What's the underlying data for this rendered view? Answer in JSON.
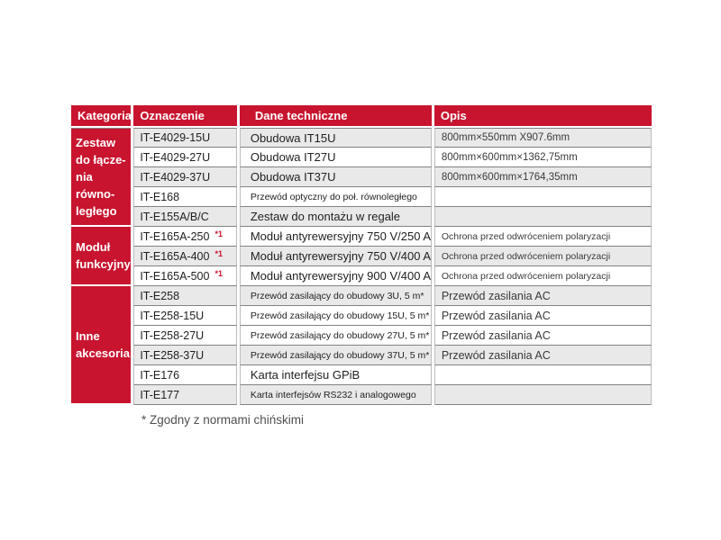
{
  "colors": {
    "accent_red": "#c8142f",
    "row_shaded": "#e9e9e9",
    "grid_line": "#828282"
  },
  "table": {
    "headers": [
      "Kategoria",
      "Oznaczenie",
      "Dane techniczne",
      "Opis"
    ],
    "categories": [
      {
        "label": "Zestaw\ndo łącze-\nnia równo-\nległego",
        "row_start": 0,
        "row_span": 5
      },
      {
        "label": "Moduł\nfunkcyjny",
        "row_start": 5,
        "row_span": 3
      },
      {
        "label": "Inne\nakcesoria",
        "row_start": 8,
        "row_span": 6
      }
    ],
    "rows": [
      {
        "code": "IT-E4029-15U",
        "note": "",
        "tech": "Obudowa IT15U",
        "opis": "800mm×550mm X907.6mm",
        "shaded": true
      },
      {
        "code": "IT-E4029-27U",
        "note": "",
        "tech": "Obudowa IT27U",
        "opis": "800mm×600mm×1362,75mm",
        "shaded": false
      },
      {
        "code": "IT-E4029-37U",
        "note": "",
        "tech": "Obudowa IT37U",
        "opis": "800mm×600mm×1764,35mm",
        "shaded": true
      },
      {
        "code": "IT-E168",
        "note": "",
        "tech": "Przewód optyczny do poł. równoległego",
        "opis": "",
        "shaded": false
      },
      {
        "code": "IT-E155A/B/C",
        "note": "",
        "tech": "Zestaw do montażu w regale",
        "opis": "",
        "shaded": true
      },
      {
        "code": "IT-E165A-250",
        "note": "*1",
        "tech": "Moduł antyrewersyjny 750 V/250 A",
        "opis": "Ochrona przed odwróceniem polaryzacji",
        "shaded": false
      },
      {
        "code": "IT-E165A-400",
        "note": "*1",
        "tech": "Moduł antyrewersyjny 750 V/400 A",
        "opis": "Ochrona przed odwróceniem polaryzacji",
        "shaded": true
      },
      {
        "code": "IT-E165A-500",
        "note": "*1",
        "tech": "Moduł antyrewersyjny 900 V/400 A",
        "opis": "Ochrona przed odwróceniem polaryzacji",
        "shaded": false
      },
      {
        "code": "IT-E258",
        "note": "",
        "tech": "Przewód zasilający do obudowy 3U, 5 m*",
        "opis": "Przewód zasilania AC",
        "shaded": true
      },
      {
        "code": "IT-E258-15U",
        "note": "",
        "tech": "Przewód zasilający do obudowy 15U, 5 m*",
        "opis": "Przewód zasilania AC",
        "shaded": false
      },
      {
        "code": "IT-E258-27U",
        "note": "",
        "tech": "Przewód zasilający do obudowy 27U, 5 m*",
        "opis": "Przewód zasilania AC",
        "shaded": false
      },
      {
        "code": "IT-E258-37U",
        "note": "",
        "tech": "Przewód zasilający do obudowy 37U, 5 m*",
        "opis": "Przewód zasilania AC",
        "shaded": true
      },
      {
        "code": "IT-E176",
        "note": "",
        "tech": "Karta interfejsu GPiB",
        "opis": "",
        "shaded": false
      },
      {
        "code": "IT-E177",
        "note": "",
        "tech": "Karta interfejsów RS232 i analogowego",
        "opis": "",
        "shaded": true
      }
    ]
  },
  "footnote": "* Zgodny z normami chińskimi"
}
